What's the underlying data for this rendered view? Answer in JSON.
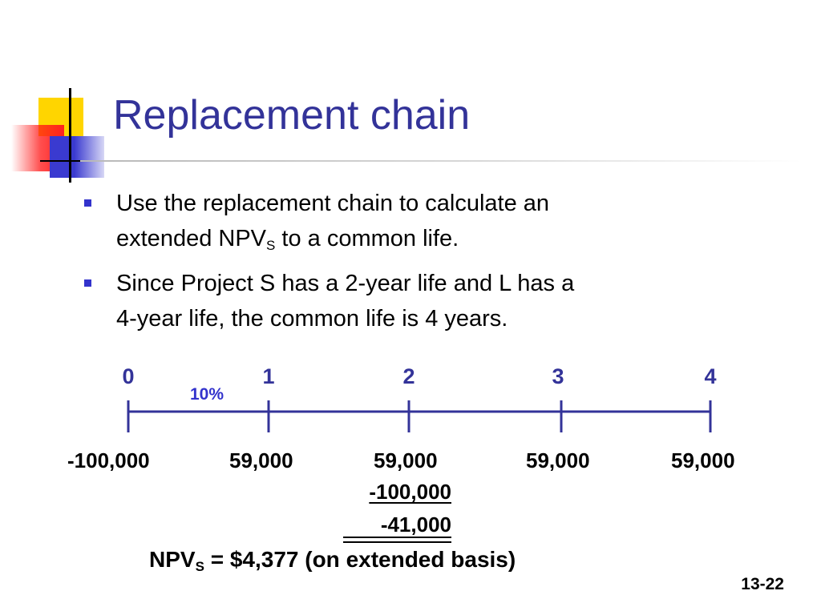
{
  "slide": {
    "title": "Replacement chain",
    "bullets": [
      {
        "line1": "Use the replacement chain to calculate an",
        "line2_pre": "extended NPV",
        "line2_sub": "S",
        "line2_post": " to a common life."
      },
      {
        "line1": "Since Project S has a 2-year life and L has a",
        "line2": "4-year life, the common life is 4 years."
      }
    ],
    "timeline": {
      "periods": [
        "0",
        "1",
        "2",
        "3",
        "4"
      ],
      "rate": "10%",
      "cash_flows": [
        "-100,000",
        "59,000",
        "59,000",
        "59,000",
        "59,000"
      ],
      "year2_adjustments": [
        "-100,000",
        "-41,000"
      ]
    },
    "npv": {
      "label": "NPV",
      "label_sub": "S",
      "text": " = $4,377 (on extended basis)"
    },
    "slide_number": "13-22"
  },
  "colors": {
    "title": "#333399",
    "bullet_marker": "#3333cc",
    "timeline": "#333399"
  }
}
